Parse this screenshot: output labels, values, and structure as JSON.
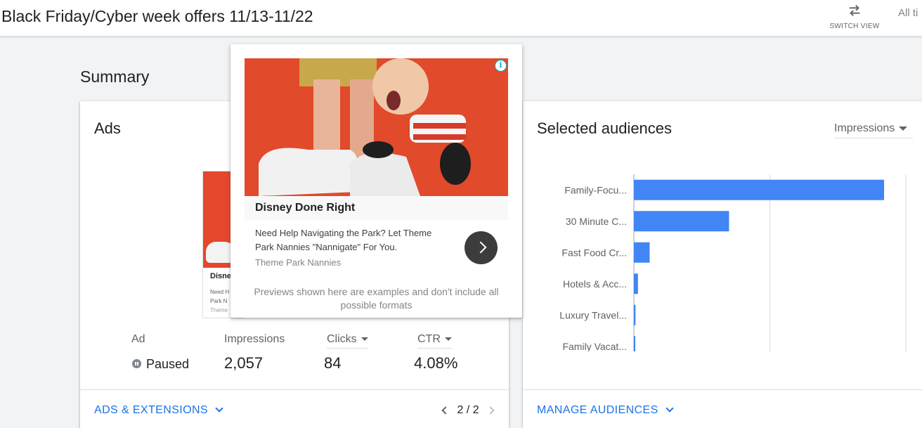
{
  "header": {
    "title": "Black Friday/Cyber week offers 11/13-11/22",
    "switch_view_label": "SWITCH VIEW",
    "date_range_label": "All ti"
  },
  "summary": {
    "heading": "Summary"
  },
  "ads_card": {
    "title": "Ads",
    "thumbnail": {
      "headline": "Disne",
      "desc": "Need H\nPark N",
      "advertiser": "Theme"
    },
    "metrics": {
      "ad_label": "Ad",
      "status": "Paused",
      "impressions_label": "Impressions",
      "impressions_value": "2,057",
      "clicks_label": "Clicks",
      "clicks_value": "84",
      "ctr_label": "CTR",
      "ctr_value": "4.08%"
    },
    "footer": {
      "link_label": "ADS & EXTENSIONS",
      "pager": "2 / 2"
    }
  },
  "ad_preview": {
    "headline": "Disney Done Right",
    "description": "Need Help Navigating the Park? Let Theme Park Nannies \"Nannigate\" For You.",
    "advertiser": "Theme Park Nannies",
    "note": "Previews shown here are examples and don't include all possible formats",
    "adchoices_icon": "i"
  },
  "audiences_card": {
    "title": "Selected audiences",
    "metric_selector": "Impressions",
    "footer": {
      "link_label": "MANAGE AUDIENCES"
    }
  },
  "chart_data": {
    "type": "bar",
    "orientation": "horizontal",
    "categories": [
      "Family-Focu...",
      "30 Minute C...",
      "Fast Food Cr...",
      "Hotels & Acc...",
      "Luxury Travel...",
      "Family Vacat..."
    ],
    "values": [
      9200,
      3500,
      580,
      150,
      60,
      50
    ],
    "xlim": [
      0,
      10000
    ],
    "xticks": [
      "0",
      "5K",
      "10K"
    ],
    "bar_color": "#4285f4"
  }
}
